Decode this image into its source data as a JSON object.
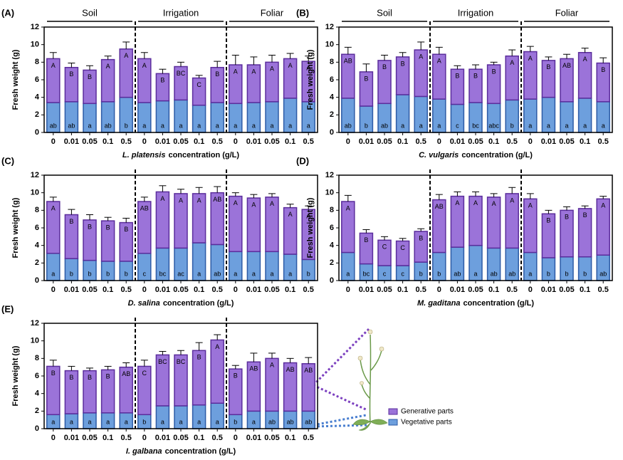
{
  "legend": {
    "items": [
      {
        "name": "Generative parts",
        "color": "#9b73d9",
        "edge": "#5b2d9c"
      },
      {
        "name": "Vegetative parts",
        "color": "#6d9fdd",
        "edge": "#2d5ba6"
      }
    ]
  },
  "chart_data": [
    {
      "type": "stacked_bar",
      "panel": "(A)",
      "groups": [
        "Soil",
        "Irrigation",
        "Foliar"
      ],
      "categories": [
        "0",
        "0.01",
        "0.05",
        "0.1",
        "0.5",
        "0",
        "0.01",
        "0.05",
        "0.1",
        "0.5",
        "0",
        "0.01",
        "0.05",
        "0.1",
        "0.5"
      ],
      "x_label": [
        "L. platensis",
        "concentration (g/L)"
      ],
      "y_label": "Fresh weight (g)",
      "ylim": [
        0,
        12
      ],
      "yticks": [
        0,
        2,
        4,
        6,
        8,
        10,
        12
      ],
      "series": [
        {
          "values": [
            3.4,
            3.5,
            3.3,
            3.5,
            4.0,
            3.4,
            3.6,
            3.7,
            3.1,
            3.4,
            3.3,
            3.4,
            3.5,
            3.9,
            3.5
          ],
          "errors": [
            0.7,
            0.7,
            0.6,
            0.6,
            0.5,
            0.6,
            0.6,
            0.6,
            0.4,
            0.5,
            0.6,
            0.7,
            0.3,
            0.8,
            0.4
          ],
          "labels": [
            "ab",
            "ab",
            "a",
            "ab",
            "b",
            "a",
            "a",
            "a",
            "a",
            "a",
            "a",
            "a",
            "a",
            "a",
            "a"
          ]
        },
        {
          "values": [
            5.0,
            3.9,
            3.8,
            4.8,
            5.5,
            5.0,
            3.1,
            3.8,
            3.1,
            4.0,
            4.4,
            4.3,
            4.5,
            4.5,
            4.6
          ],
          "errors": [
            0.7,
            0.5,
            0.5,
            0.4,
            0.8,
            0.7,
            0.5,
            0.5,
            0.3,
            0.7,
            1.1,
            0.9,
            0.8,
            0.6,
            0.6
          ],
          "labels": [
            "A",
            "B",
            "B",
            "A",
            "A",
            "A",
            "B",
            "BC",
            "C",
            "B",
            "A",
            "A",
            "A",
            "A",
            "A"
          ]
        }
      ]
    },
    {
      "type": "stacked_bar",
      "panel": "(B)",
      "groups": [
        "Soil",
        "Irrigation",
        "Foliar"
      ],
      "categories": [
        "0",
        "0.01",
        "0.05",
        "0.1",
        "0.5",
        "0",
        "0.01",
        "0.05",
        "0.1",
        "0.5",
        "0",
        "0.01",
        "0.05",
        "0.1",
        "0.5"
      ],
      "x_label": [
        "C. vulgaris",
        "concentration (g/L)"
      ],
      "y_label": "Fresh weight (g)",
      "ylim": [
        0,
        12
      ],
      "yticks": [
        0,
        2,
        4,
        6,
        8,
        10,
        12
      ],
      "series": [
        {
          "values": [
            3.9,
            3.0,
            3.3,
            4.3,
            4.1,
            3.8,
            3.2,
            3.4,
            3.3,
            3.7,
            3.8,
            4.0,
            3.5,
            3.9,
            3.5
          ],
          "errors": [
            0.7,
            0.9,
            0.6,
            0.8,
            0.5,
            0.8,
            0.5,
            0.5,
            0.5,
            0.7,
            0.7,
            0.7,
            0.4,
            0.5,
            0.7
          ],
          "labels": [
            "ab",
            "b",
            "ab",
            "a",
            "a",
            "a",
            "c",
            "bc",
            "abc",
            "b",
            "a",
            "a",
            "a",
            "a",
            "a"
          ]
        },
        {
          "values": [
            5.0,
            3.9,
            4.9,
            4.3,
            5.3,
            5.1,
            4.0,
            3.8,
            4.4,
            5.0,
            5.4,
            4.2,
            4.9,
            5.2,
            4.4
          ],
          "errors": [
            0.8,
            0.9,
            0.6,
            0.5,
            0.9,
            0.8,
            0.4,
            0.5,
            0.3,
            0.7,
            0.6,
            0.4,
            0.5,
            0.5,
            0.6
          ],
          "labels": [
            "AB",
            "B",
            "B",
            "B",
            "A",
            "A",
            "B",
            "B",
            "B",
            "A",
            "A",
            "B",
            "AB",
            "A",
            "B"
          ]
        }
      ]
    },
    {
      "type": "stacked_bar",
      "panel": "(C)",
      "categories": [
        "0",
        "0.01",
        "0.05",
        "0.1",
        "0.5",
        "0",
        "0.01",
        "0.05",
        "0.1",
        "0.5",
        "0",
        "0.01",
        "0.05",
        "0.1",
        "0.5"
      ],
      "x_label": [
        "D. salina",
        "concentration (g/L)"
      ],
      "y_label": "Fresh weight (g)",
      "ylim": [
        0,
        12
      ],
      "yticks": [
        0,
        2,
        4,
        6,
        8,
        10,
        12
      ],
      "series": [
        {
          "values": [
            3.1,
            2.5,
            2.3,
            2.2,
            2.2,
            3.1,
            3.7,
            3.7,
            4.3,
            4.1,
            3.3,
            3.3,
            3.3,
            3.0,
            2.4
          ],
          "errors": [
            0.5,
            0.6,
            0.4,
            0.4,
            0.3,
            0.5,
            0.6,
            0.5,
            0.8,
            0.6,
            0.6,
            0.4,
            0.4,
            0.4,
            0.3
          ],
          "labels": [
            "a",
            "b",
            "b",
            "b",
            "b",
            "c",
            "bc",
            "ac",
            "a",
            "ab",
            "a",
            "a",
            "a",
            "a",
            "b"
          ]
        },
        {
          "values": [
            5.9,
            5.0,
            4.6,
            4.6,
            4.4,
            5.9,
            6.4,
            6.2,
            5.6,
            5.9,
            6.3,
            6.1,
            6.2,
            5.3,
            5.7
          ],
          "errors": [
            0.5,
            0.6,
            0.6,
            0.4,
            0.5,
            0.5,
            0.7,
            0.5,
            0.7,
            0.7,
            0.4,
            0.4,
            0.4,
            0.4,
            0.4
          ],
          "labels": [
            "A",
            "B",
            "B",
            "B",
            "B",
            "AB",
            "A",
            "A",
            "A",
            "AB",
            "A",
            "A",
            "A",
            "A",
            "A"
          ]
        }
      ]
    },
    {
      "type": "stacked_bar",
      "panel": "(D)",
      "categories": [
        "0",
        "0.01",
        "0.05",
        "0.1",
        "0.5",
        "0",
        "0.01",
        "0.05",
        "0.1",
        "0.5",
        "0",
        "0.01",
        "0.05",
        "0.1",
        "0.5"
      ],
      "x_label": [
        "M. gaditana",
        "concentration (g/L)"
      ],
      "y_label": "Fresh weight (g)",
      "ylim": [
        0,
        12
      ],
      "yticks": [
        0,
        2,
        4,
        6,
        8,
        10,
        12
      ],
      "series": [
        {
          "values": [
            3.2,
            1.9,
            1.7,
            1.7,
            2.1,
            3.2,
            3.8,
            4.0,
            3.7,
            3.7,
            3.2,
            2.6,
            2.7,
            2.7,
            2.9
          ],
          "errors": [
            0.4,
            0.3,
            0.3,
            0.3,
            0.3,
            0.5,
            0.5,
            0.5,
            0.4,
            0.5,
            0.7,
            0.3,
            0.5,
            0.4,
            0.3
          ],
          "labels": [
            "a",
            "bc",
            "c",
            "c",
            "b",
            "b",
            "ab",
            "a",
            "ab",
            "ab",
            "a",
            "b",
            "b",
            "b",
            "ab"
          ]
        },
        {
          "values": [
            5.8,
            3.5,
            2.9,
            2.8,
            3.5,
            6.0,
            5.8,
            5.6,
            5.8,
            6.2,
            6.1,
            5.0,
            5.3,
            5.5,
            6.4
          ],
          "errors": [
            0.7,
            0.4,
            0.4,
            0.3,
            0.3,
            0.6,
            0.5,
            0.5,
            0.4,
            0.7,
            0.6,
            0.4,
            0.4,
            0.3,
            0.3
          ],
          "labels": [
            "A",
            "B",
            "C",
            "C",
            "B",
            "AB",
            "A",
            "A",
            "A",
            "A",
            "A",
            "B",
            "B",
            "B",
            "A"
          ]
        }
      ]
    },
    {
      "type": "stacked_bar",
      "panel": "(E)",
      "categories": [
        "0",
        "0.01",
        "0.05",
        "0.1",
        "0.5",
        "0",
        "0.01",
        "0.05",
        "0.1",
        "0.5",
        "0",
        "0.01",
        "0.05",
        "0.1",
        "0.5"
      ],
      "x_label": [
        "I. galbana",
        "concentration (g/L)"
      ],
      "y_label": "Fresh weight (g)",
      "ylim": [
        0,
        12
      ],
      "yticks": [
        0,
        2,
        4,
        6,
        8,
        10,
        12
      ],
      "series": [
        {
          "values": [
            1.6,
            1.7,
            1.8,
            1.8,
            1.8,
            1.6,
            2.6,
            2.6,
            2.7,
            2.9,
            1.6,
            2.0,
            2.0,
            2.0,
            2.0
          ],
          "errors": [
            0.5,
            0.4,
            0.5,
            0.5,
            0.4,
            0.5,
            0.3,
            0.4,
            0.5,
            0.7,
            0.5,
            0.8,
            0.4,
            0.4,
            0.4
          ],
          "labels": [
            "a",
            "a",
            "a",
            "a",
            "a",
            "b",
            "a",
            "a",
            "a",
            "a",
            "b",
            "a",
            "ab",
            "ab",
            "ab"
          ]
        },
        {
          "values": [
            5.5,
            4.9,
            4.8,
            4.9,
            5.2,
            5.5,
            5.8,
            5.8,
            6.2,
            7.2,
            5.2,
            5.6,
            6.0,
            5.5,
            5.4
          ],
          "errors": [
            0.7,
            0.5,
            0.3,
            0.4,
            0.5,
            0.7,
            0.4,
            0.5,
            0.9,
            0.6,
            0.4,
            1.0,
            0.6,
            0.5,
            0.7
          ],
          "labels": [
            "B",
            "B",
            "B",
            "B",
            "AB",
            "C",
            "BC",
            "BC",
            "B",
            "A",
            "B",
            "AB",
            "A",
            "AB",
            "AB"
          ]
        }
      ]
    }
  ]
}
